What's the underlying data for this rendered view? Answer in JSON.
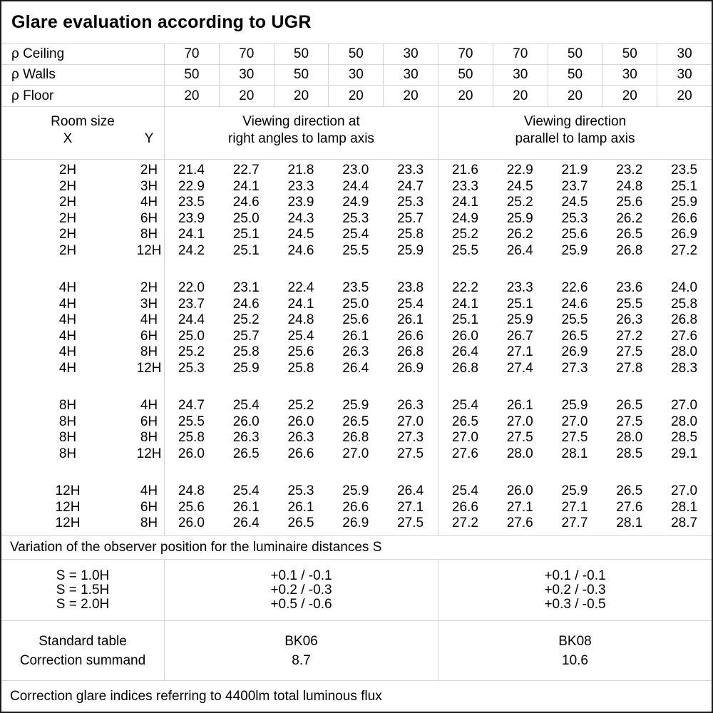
{
  "title": "Glare evaluation according to UGR",
  "colors": {
    "grid_line": "#d4d4d4",
    "outer_border": "#1a1a1a",
    "background": "#ffffff",
    "text": "#000000"
  },
  "reflectance_rows": [
    {
      "label": "ρ Ceiling",
      "values": [
        "70",
        "70",
        "50",
        "50",
        "30",
        "70",
        "70",
        "50",
        "50",
        "30"
      ]
    },
    {
      "label": "ρ Walls",
      "values": [
        "50",
        "30",
        "50",
        "30",
        "30",
        "50",
        "30",
        "50",
        "30",
        "30"
      ]
    },
    {
      "label": "ρ Floor",
      "values": [
        "20",
        "20",
        "20",
        "20",
        "20",
        "20",
        "20",
        "20",
        "20",
        "20"
      ]
    }
  ],
  "header": {
    "room_size_label": "Room size",
    "x_label": "X",
    "y_label": "Y",
    "viewing_right_angles": {
      "line1": "Viewing direction at",
      "line2": "right angles to lamp axis"
    },
    "viewing_parallel": {
      "line1": "Viewing direction",
      "line2": "parallel to lamp axis"
    }
  },
  "data_blocks": [
    {
      "rows": [
        {
          "x": "2H",
          "y": "2H",
          "values": [
            "21.4",
            "22.7",
            "21.8",
            "23.0",
            "23.3",
            "21.6",
            "22.9",
            "21.9",
            "23.2",
            "23.5"
          ]
        },
        {
          "x": "2H",
          "y": "3H",
          "values": [
            "22.9",
            "24.1",
            "23.3",
            "24.4",
            "24.7",
            "23.3",
            "24.5",
            "23.7",
            "24.8",
            "25.1"
          ]
        },
        {
          "x": "2H",
          "y": "4H",
          "values": [
            "23.5",
            "24.6",
            "23.9",
            "24.9",
            "25.3",
            "24.1",
            "25.2",
            "24.5",
            "25.6",
            "25.9"
          ]
        },
        {
          "x": "2H",
          "y": "6H",
          "values": [
            "23.9",
            "25.0",
            "24.3",
            "25.3",
            "25.7",
            "24.9",
            "25.9",
            "25.3",
            "26.2",
            "26.6"
          ]
        },
        {
          "x": "2H",
          "y": "8H",
          "values": [
            "24.1",
            "25.1",
            "24.5",
            "25.4",
            "25.8",
            "25.2",
            "26.2",
            "25.6",
            "26.5",
            "26.9"
          ]
        },
        {
          "x": "2H",
          "y": "12H",
          "values": [
            "24.2",
            "25.1",
            "24.6",
            "25.5",
            "25.9",
            "25.5",
            "26.4",
            "25.9",
            "26.8",
            "27.2"
          ]
        }
      ]
    },
    {
      "rows": [
        {
          "x": "4H",
          "y": "2H",
          "values": [
            "22.0",
            "23.1",
            "22.4",
            "23.5",
            "23.8",
            "22.2",
            "23.3",
            "22.6",
            "23.6",
            "24.0"
          ]
        },
        {
          "x": "4H",
          "y": "3H",
          "values": [
            "23.7",
            "24.6",
            "24.1",
            "25.0",
            "25.4",
            "24.1",
            "25.1",
            "24.6",
            "25.5",
            "25.8"
          ]
        },
        {
          "x": "4H",
          "y": "4H",
          "values": [
            "24.4",
            "25.2",
            "24.8",
            "25.6",
            "26.1",
            "25.1",
            "25.9",
            "25.5",
            "26.3",
            "26.8"
          ]
        },
        {
          "x": "4H",
          "y": "6H",
          "values": [
            "25.0",
            "25.7",
            "25.4",
            "26.1",
            "26.6",
            "26.0",
            "26.7",
            "26.5",
            "27.2",
            "27.6"
          ]
        },
        {
          "x": "4H",
          "y": "8H",
          "values": [
            "25.2",
            "25.8",
            "25.6",
            "26.3",
            "26.8",
            "26.4",
            "27.1",
            "26.9",
            "27.5",
            "28.0"
          ]
        },
        {
          "x": "4H",
          "y": "12H",
          "values": [
            "25.3",
            "25.9",
            "25.8",
            "26.4",
            "26.9",
            "26.8",
            "27.4",
            "27.3",
            "27.8",
            "28.3"
          ]
        }
      ]
    },
    {
      "rows": [
        {
          "x": "8H",
          "y": "4H",
          "values": [
            "24.7",
            "25.4",
            "25.2",
            "25.9",
            "26.3",
            "25.4",
            "26.1",
            "25.9",
            "26.5",
            "27.0"
          ]
        },
        {
          "x": "8H",
          "y": "6H",
          "values": [
            "25.5",
            "26.0",
            "26.0",
            "26.5",
            "27.0",
            "26.5",
            "27.0",
            "27.0",
            "27.5",
            "28.0"
          ]
        },
        {
          "x": "8H",
          "y": "8H",
          "values": [
            "25.8",
            "26.3",
            "26.3",
            "26.8",
            "27.3",
            "27.0",
            "27.5",
            "27.5",
            "28.0",
            "28.5"
          ]
        },
        {
          "x": "8H",
          "y": "12H",
          "values": [
            "26.0",
            "26.5",
            "26.6",
            "27.0",
            "27.5",
            "27.6",
            "28.0",
            "28.1",
            "28.5",
            "29.1"
          ]
        }
      ]
    },
    {
      "rows": [
        {
          "x": "12H",
          "y": "4H",
          "values": [
            "24.8",
            "25.4",
            "25.3",
            "25.9",
            "26.4",
            "25.4",
            "26.0",
            "25.9",
            "26.5",
            "27.0"
          ]
        },
        {
          "x": "12H",
          "y": "6H",
          "values": [
            "25.6",
            "26.1",
            "26.1",
            "26.6",
            "27.1",
            "26.6",
            "27.1",
            "27.1",
            "27.6",
            "28.1"
          ]
        },
        {
          "x": "12H",
          "y": "8H",
          "values": [
            "26.0",
            "26.4",
            "26.5",
            "26.9",
            "27.5",
            "27.2",
            "27.6",
            "27.7",
            "28.1",
            "28.7"
          ]
        }
      ]
    }
  ],
  "variation_note": "Variation of the observer position for the luminaire distances S",
  "s_rows": [
    {
      "label": "S = 1.0H",
      "right_angles": "+0.1 / -0.1",
      "parallel": "+0.1 / -0.1"
    },
    {
      "label": "S = 1.5H",
      "right_angles": "+0.2 / -0.3",
      "parallel": "+0.2 / -0.3"
    },
    {
      "label": "S = 2.0H",
      "right_angles": "+0.5 / -0.6",
      "parallel": "+0.3 / -0.5"
    }
  ],
  "standard": {
    "table_label": "Standard table",
    "summand_label": "Correction summand",
    "right_angles": {
      "table": "BK06",
      "summand": "8.7"
    },
    "parallel": {
      "table": "BK08",
      "summand": "10.6"
    }
  },
  "footer_note": "Correction glare indices referring to 4400lm total luminous flux"
}
